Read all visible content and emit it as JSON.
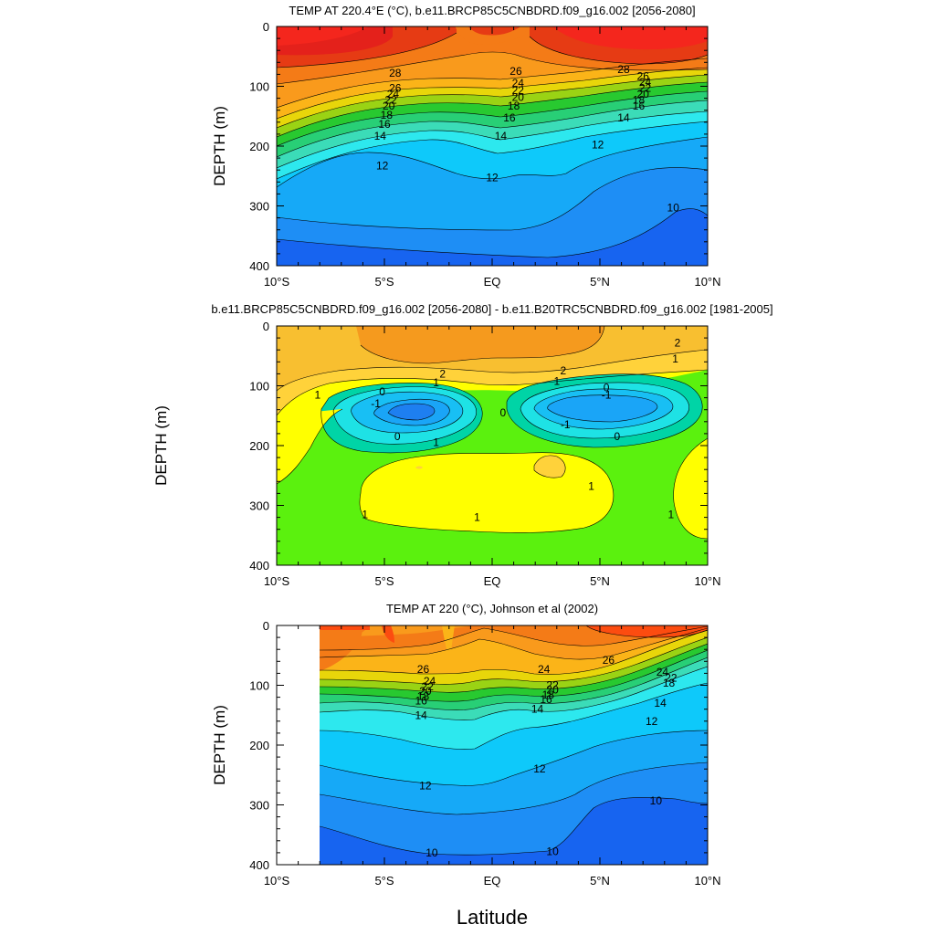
{
  "figure": {
    "xlabel": "Latitude",
    "xticks": [
      {
        "v": -10,
        "label": "10°S"
      },
      {
        "v": -5,
        "label": "5°S"
      },
      {
        "v": 0,
        "label": "EQ"
      },
      {
        "v": 5,
        "label": "5°N"
      },
      {
        "v": 10,
        "label": "10°N"
      }
    ],
    "yticks": [
      0,
      100,
      200,
      300,
      400
    ]
  },
  "chart_data": [
    {
      "type": "heatmap",
      "title": "TEMP AT 220.4°E (°C), b.e11.BRCP85C5CNBDRD.f09_g16.002 [2056-2080]",
      "ylabel": "DEPTH (m)",
      "xlim": [
        -10,
        10
      ],
      "ylim": [
        400,
        0
      ],
      "contour_labels": [
        {
          "text": "28",
          "x": -4.5,
          "y": 78
        },
        {
          "text": "26",
          "x": 1.1,
          "y": 75
        },
        {
          "text": "28",
          "x": 6.1,
          "y": 72
        },
        {
          "text": "26",
          "x": -4.5,
          "y": 103
        },
        {
          "text": "24",
          "x": -4.6,
          "y": 113
        },
        {
          "text": "22",
          "x": -4.7,
          "y": 123
        },
        {
          "text": "20",
          "x": -4.8,
          "y": 133
        },
        {
          "text": "18",
          "x": -4.9,
          "y": 148
        },
        {
          "text": "16",
          "x": -5.0,
          "y": 163
        },
        {
          "text": "14",
          "x": -5.2,
          "y": 183
        },
        {
          "text": "12",
          "x": -5.1,
          "y": 233
        },
        {
          "text": "24",
          "x": 1.2,
          "y": 95
        },
        {
          "text": "22",
          "x": 1.2,
          "y": 107
        },
        {
          "text": "20",
          "x": 1.2,
          "y": 118
        },
        {
          "text": "18",
          "x": 1.0,
          "y": 133
        },
        {
          "text": "16",
          "x": 0.8,
          "y": 153
        },
        {
          "text": "14",
          "x": 0.4,
          "y": 183
        },
        {
          "text": "12",
          "x": 0.0,
          "y": 253
        },
        {
          "text": "12",
          "x": 4.9,
          "y": 198
        },
        {
          "text": "14",
          "x": 6.1,
          "y": 153
        },
        {
          "text": "16",
          "x": 6.8,
          "y": 133
        },
        {
          "text": "26",
          "x": 7.0,
          "y": 83
        },
        {
          "text": "24",
          "x": 7.1,
          "y": 93
        },
        {
          "text": "22",
          "x": 7.1,
          "y": 103
        },
        {
          "text": "20",
          "x": 7.0,
          "y": 113
        },
        {
          "text": "18",
          "x": 6.8,
          "y": 123
        },
        {
          "text": "10",
          "x": 8.4,
          "y": 303
        }
      ]
    },
    {
      "type": "heatmap",
      "title": "b.e11.BRCP85C5CNBDRD.f09_g16.002 [2056-2080] - b.e11.B20TRC5CNBDRD.f09_g16.002 [1981-2005]",
      "ylabel": "DEPTH (m)",
      "xlim": [
        -10,
        10
      ],
      "ylim": [
        400,
        0
      ],
      "contour_labels": [
        {
          "text": "2",
          "x": 8.6,
          "y": 28
        },
        {
          "text": "1",
          "x": 8.5,
          "y": 55
        },
        {
          "text": "2",
          "x": -2.3,
          "y": 80
        },
        {
          "text": "2",
          "x": 3.3,
          "y": 75
        },
        {
          "text": "1",
          "x": -2.6,
          "y": 95
        },
        {
          "text": "1",
          "x": 3.0,
          "y": 92
        },
        {
          "text": "1",
          "x": -8.1,
          "y": 115
        },
        {
          "text": "0",
          "x": -5.1,
          "y": 110
        },
        {
          "text": "-1",
          "x": -5.4,
          "y": 130
        },
        {
          "text": "0",
          "x": 5.3,
          "y": 103
        },
        {
          "text": "-1",
          "x": 5.3,
          "y": 115
        },
        {
          "text": "0",
          "x": 0.5,
          "y": 145
        },
        {
          "text": "-1",
          "x": 3.4,
          "y": 165
        },
        {
          "text": "0",
          "x": -4.4,
          "y": 185
        },
        {
          "text": "1",
          "x": -2.6,
          "y": 195
        },
        {
          "text": "0",
          "x": 5.8,
          "y": 185
        },
        {
          "text": "1",
          "x": -5.9,
          "y": 315
        },
        {
          "text": "1",
          "x": -0.7,
          "y": 320
        },
        {
          "text": "1",
          "x": 4.6,
          "y": 268
        },
        {
          "text": "1",
          "x": 8.3,
          "y": 315
        }
      ]
    },
    {
      "type": "heatmap",
      "title": "TEMP AT 220 (°C), Johnson et al (2002)",
      "ylabel": "DEPTH (m)",
      "xlim": [
        -10,
        10
      ],
      "ylim": [
        400,
        0
      ],
      "contour_labels": [
        {
          "text": "26",
          "x": -3.2,
          "y": 73
        },
        {
          "text": "24",
          "x": -2.9,
          "y": 93
        },
        {
          "text": "22",
          "x": -3.0,
          "y": 102
        },
        {
          "text": "20",
          "x": -3.1,
          "y": 110
        },
        {
          "text": "18",
          "x": -3.2,
          "y": 118
        },
        {
          "text": "16",
          "x": -3.3,
          "y": 126
        },
        {
          "text": "14",
          "x": -3.3,
          "y": 150
        },
        {
          "text": "24",
          "x": 2.4,
          "y": 73
        },
        {
          "text": "26",
          "x": 5.4,
          "y": 58
        },
        {
          "text": "22",
          "x": 2.8,
          "y": 100
        },
        {
          "text": "20",
          "x": 2.8,
          "y": 108
        },
        {
          "text": "18",
          "x": 2.6,
          "y": 116
        },
        {
          "text": "16",
          "x": 2.5,
          "y": 124
        },
        {
          "text": "14",
          "x": 2.1,
          "y": 140
        },
        {
          "text": "12",
          "x": 2.2,
          "y": 240
        },
        {
          "text": "12",
          "x": -3.1,
          "y": 268
        },
        {
          "text": "10",
          "x": -2.8,
          "y": 380
        },
        {
          "text": "10",
          "x": 2.8,
          "y": 378
        },
        {
          "text": "10",
          "x": 7.6,
          "y": 293
        },
        {
          "text": "12",
          "x": 7.4,
          "y": 160
        },
        {
          "text": "14",
          "x": 7.8,
          "y": 130
        },
        {
          "text": "24",
          "x": 7.9,
          "y": 78
        },
        {
          "text": "22",
          "x": 8.3,
          "y": 88
        },
        {
          "text": "18",
          "x": 8.2,
          "y": 96
        }
      ]
    }
  ]
}
